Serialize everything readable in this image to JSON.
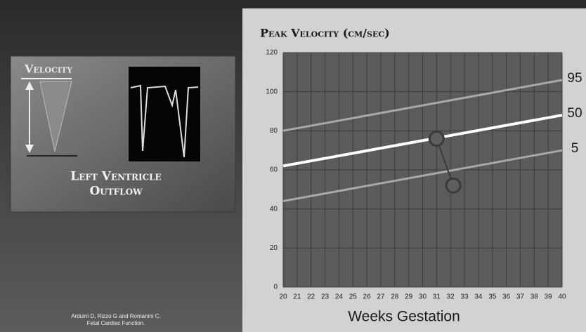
{
  "slide": {
    "heading": "Velocity",
    "caption": [
      "Left Ventricle",
      "Outflow"
    ],
    "citation": [
      "Arduini D, Rizzo G and Romanini C.",
      "Fetal Cardiac Function."
    ]
  },
  "chart_data": {
    "type": "line",
    "title": "Peak Velocity (cm/sec)",
    "xlabel": "Weeks Gestation",
    "xlim": [
      20,
      40
    ],
    "xticks": [
      20,
      21,
      22,
      23,
      24,
      25,
      26,
      27,
      28,
      29,
      30,
      31,
      32,
      33,
      34,
      35,
      36,
      37,
      38,
      39,
      40
    ],
    "ylim": [
      0,
      120
    ],
    "yticks": [
      0,
      20,
      40,
      60,
      80,
      100,
      120
    ],
    "grid": true,
    "series": [
      {
        "name": "95",
        "color": "#a9a9a9",
        "x": [
          20,
          40
        ],
        "values": [
          80,
          106
        ]
      },
      {
        "name": "50",
        "color": "#ffffff",
        "x": [
          20,
          40
        ],
        "values": [
          62,
          88
        ]
      },
      {
        "name": "5",
        "color": "#a9a9a9",
        "x": [
          20,
          40
        ],
        "values": [
          44,
          70
        ]
      },
      {
        "color": "#3a3a3a",
        "x": [
          31,
          32.2
        ],
        "values": [
          76,
          52
        ],
        "markers": true
      }
    ]
  }
}
